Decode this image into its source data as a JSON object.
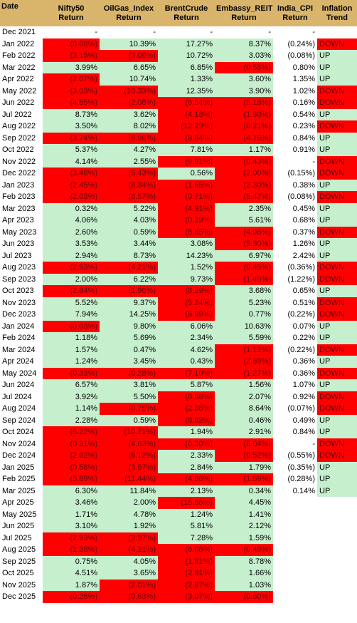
{
  "headers": [
    "Date",
    "Nifty50 Return",
    "OilGas_Index Return",
    "BrentCrude Return",
    "Embassy_REIT Return",
    "India_CPI Return",
    "Inflation Trend"
  ],
  "header_lines": [
    [
      "Date"
    ],
    [
      "Nifty50",
      "Return"
    ],
    [
      "OilGas_Index",
      "Return"
    ],
    [
      "BrentCrude",
      "Return"
    ],
    [
      "Embassy_REIT",
      "Return"
    ],
    [
      "India_CPI",
      "Return"
    ],
    [
      "Inflation",
      "Trend"
    ]
  ],
  "colors": {
    "header": "#d9b46b",
    "positive": "#c6efce",
    "negative": "#ff0000"
  },
  "rows": [
    [
      "Dec 2021",
      "-",
      "-",
      "-",
      "-",
      "-",
      ""
    ],
    [
      "Jan 2022",
      "(0.08%)",
      "10.39%",
      "17.27%",
      "8.37%",
      "(0.24%)",
      "DOWN"
    ],
    [
      "Feb 2022",
      "(3.15%)",
      "(3.09%)",
      "10.72%",
      "3.03%",
      "(0.08%)",
      "UP"
    ],
    [
      "Mar 2022",
      "3.99%",
      "6.65%",
      "6.85%",
      "(0.58%)",
      "0.80%",
      "UP"
    ],
    [
      "Apr 2022",
      "(2.07%)",
      "10.74%",
      "1.33%",
      "3.60%",
      "1.35%",
      "UP"
    ],
    [
      "May 2022",
      "(3.03%)",
      "(10.33%)",
      "12.35%",
      "3.90%",
      "1.02%",
      "DOWN"
    ],
    [
      "Jun 2022",
      "(4.85%)",
      "(2.08%)",
      "(6.54%)",
      "(5.18%)",
      "0.16%",
      "DOWN"
    ],
    [
      "Jul 2022",
      "8.73%",
      "3.62%",
      "(4.18%)",
      "(1.30%)",
      "0.54%",
      "UP"
    ],
    [
      "Aug 2022",
      "3.50%",
      "8.02%",
      "(12.29%)",
      "(0.21%)",
      "0.23%",
      "DOWN"
    ],
    [
      "Sep 2022",
      "(3.74%)",
      "(8.98%)",
      "(8.84%)",
      "(4.76%)",
      "0.84%",
      "UP"
    ],
    [
      "Oct 2022",
      "5.37%",
      "4.27%",
      "7.81%",
      "1.17%",
      "0.91%",
      "UP"
    ],
    [
      "Nov 2022",
      "4.14%",
      "2.55%",
      "(9.91%)",
      "(0.43%)",
      "-",
      "DOWN"
    ],
    [
      "Dec 2022",
      "(3.48%)",
      "(5.43%)",
      "0.56%",
      "(2.00%)",
      "(0.15%)",
      "DOWN"
    ],
    [
      "Jan 2023",
      "(2.45%)",
      "(8.34%)",
      "(1.65%)",
      "(2.30%)",
      "0.38%",
      "UP"
    ],
    [
      "Feb 2023",
      "(2.03%)",
      "(8.57%)",
      "(0.71%)",
      "(5.47%)",
      "(0.08%)",
      "DOWN"
    ],
    [
      "Mar 2023",
      "0.32%",
      "5.22%",
      "(4.91%)",
      "2.35%",
      "0.45%",
      "UP"
    ],
    [
      "Apr 2023",
      "4.06%",
      "4.03%",
      "(0.29%)",
      "5.61%",
      "0.68%",
      "UP"
    ],
    [
      "May 2023",
      "2.60%",
      "0.59%",
      "(8.65%)",
      "(4.96%)",
      "0.37%",
      "DOWN"
    ],
    [
      "Jun 2023",
      "3.53%",
      "3.44%",
      "3.08%",
      "(5.30%)",
      "1.26%",
      "UP"
    ],
    [
      "Jul 2023",
      "2.94%",
      "8.73%",
      "14.23%",
      "6.97%",
      "2.42%",
      "UP"
    ],
    [
      "Aug 2023",
      "(2.53%)",
      "(4.21%)",
      "1.52%",
      "(0.45%)",
      "(0.36%)",
      "DOWN"
    ],
    [
      "Sep 2023",
      "2.00%",
      "6.22%",
      "9.73%",
      "(1.49%)",
      "(1.22%)",
      "DOWN"
    ],
    [
      "Oct 2023",
      "(2.84%)",
      "(1.96%)",
      "(8.29%)",
      "3.68%",
      "0.65%",
      "UP"
    ],
    [
      "Nov 2023",
      "5.52%",
      "9.37%",
      "(5.24%)",
      "5.23%",
      "0.51%",
      "DOWN"
    ],
    [
      "Dec 2023",
      "7.94%",
      "14.25%",
      "(6.99%)",
      "0.77%",
      "(0.22%)",
      "DOWN"
    ],
    [
      "Jan 2024",
      "(0.03%)",
      "9.80%",
      "6.06%",
      "10.63%",
      "0.07%",
      "UP"
    ],
    [
      "Feb 2024",
      "1.18%",
      "5.69%",
      "2.34%",
      "5.59%",
      "0.22%",
      "UP"
    ],
    [
      "Mar 2024",
      "1.57%",
      "0.47%",
      "4.62%",
      "(1.12%)",
      "(0.22%)",
      "DOWN"
    ],
    [
      "Apr 2024",
      "1.24%",
      "3.45%",
      "0.43%",
      "(2.69%)",
      "0.36%",
      "UP"
    ],
    [
      "May 2024",
      "(0.33%)",
      "(0.28%)",
      "(7.10%)",
      "(1.27%)",
      "0.36%",
      "DOWN"
    ],
    [
      "Jun 2024",
      "6.57%",
      "3.81%",
      "5.87%",
      "1.56%",
      "1.07%",
      "UP"
    ],
    [
      "Jul 2024",
      "3.92%",
      "5.50%",
      "(6.58%)",
      "2.07%",
      "0.92%",
      "DOWN"
    ],
    [
      "Aug 2024",
      "1.14%",
      "(0.75%)",
      "(2.38%)",
      "8.64%",
      "(0.07%)",
      "DOWN"
    ],
    [
      "Sep 2024",
      "2.28%",
      "0.59%",
      "(8.92%)",
      "0.46%",
      "0.49%",
      "UP"
    ],
    [
      "Oct 2024",
      "(6.22%)",
      "(10.71%)",
      "1.94%",
      "2.91%",
      "0.84%",
      "UP"
    ],
    [
      "Nov 2024",
      "(0.31%)",
      "(4.63%)",
      "(0.30%)",
      "(6.04%)",
      "-",
      "DOWN"
    ],
    [
      "Dec 2024",
      "(2.02%)",
      "(6.12%)",
      "2.33%",
      "(0.52%)",
      "(0.55%)",
      "DOWN"
    ],
    [
      "Jan 2025",
      "(0.58%)",
      "(3.67%)",
      "2.84%",
      "1.79%",
      "(0.35%)",
      "UP"
    ],
    [
      "Feb 2025",
      "(5.89%)",
      "(11.44%)",
      "(4.66%)",
      "(1.59%)",
      "(0.28%)",
      "UP"
    ],
    [
      "Mar 2025",
      "6.30%",
      "11.84%",
      "2.13%",
      "0.34%",
      "0.14%",
      "UP"
    ],
    [
      "Apr 2025",
      "3.46%",
      "2.00%",
      "(15.55%)",
      "4.45%",
      "",
      ""
    ],
    [
      "May 2025",
      "1.71%",
      "4.78%",
      "1.24%",
      "1.41%",
      "",
      ""
    ],
    [
      "Jun 2025",
      "3.10%",
      "1.92%",
      "5.81%",
      "2.12%",
      "",
      ""
    ],
    [
      "Jul 2025",
      "(2.93%)",
      "(3.97%)",
      "7.28%",
      "1.59%",
      "",
      ""
    ],
    [
      "Aug 2025",
      "(1.38%)",
      "(4.21%)",
      "(6.08%)",
      "(0.49%)",
      "",
      ""
    ],
    [
      "Sep 2025",
      "0.75%",
      "4.05%",
      "(1.61%)",
      "8.78%",
      "",
      ""
    ],
    [
      "Oct 2025",
      "4.51%",
      "3.65%",
      "(2.91%)",
      "1.66%",
      "",
      ""
    ],
    [
      "Nov 2025",
      "1.87%",
      "(2.01%)",
      "(2.87%)",
      "1.03%",
      "",
      ""
    ],
    [
      "Dec 2025",
      "(0.28%)",
      "(0.63%)",
      "(3.07%)",
      "(0.60%)",
      "",
      ""
    ]
  ]
}
